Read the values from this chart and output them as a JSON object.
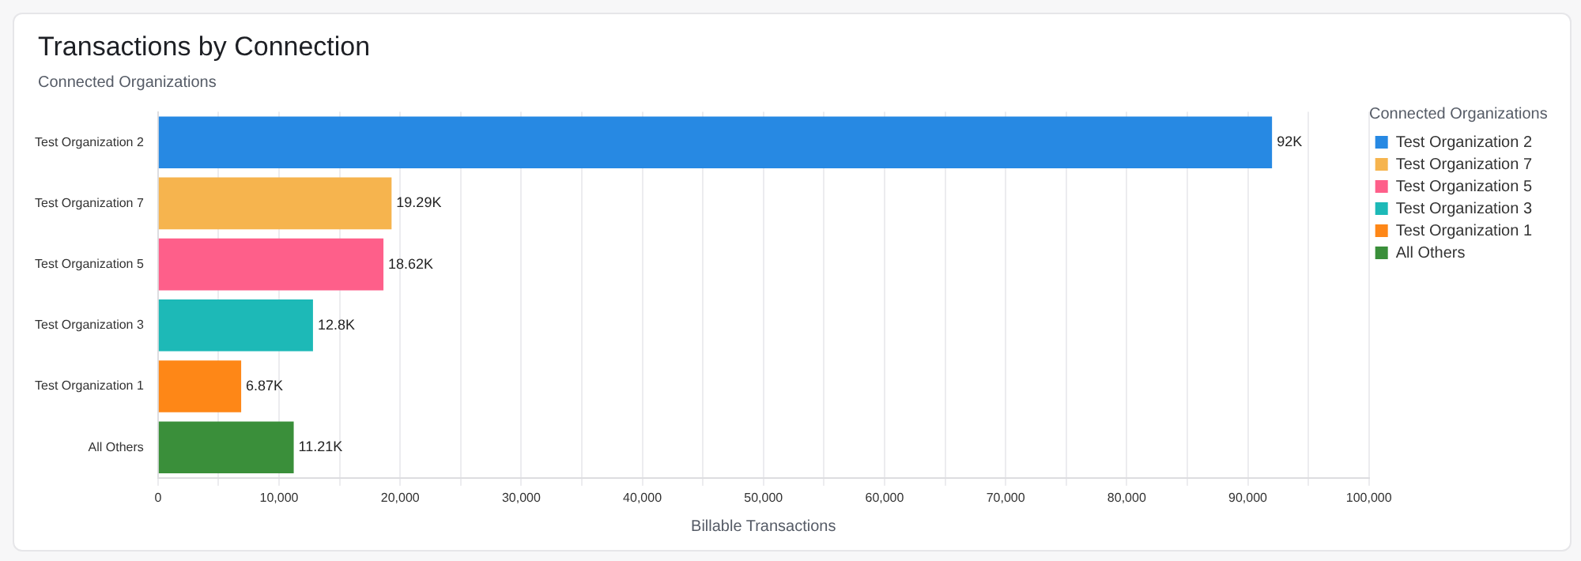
{
  "chart_data": {
    "type": "bar",
    "orientation": "horizontal",
    "title": "Transactions by Connection",
    "subtitle": "Connected Organizations",
    "xlabel": "Billable Transactions",
    "legend_title": "Connected Organizations",
    "legend": "right",
    "grid": "x",
    "categories": [
      "Test Organization 2",
      "Test Organization 7",
      "Test Organization 5",
      "Test Organization 3",
      "Test Organization 1",
      "All Others"
    ],
    "series": [
      {
        "name": "Test Organization 2",
        "color": "#2789e3",
        "values": [
          92000,
          null,
          null,
          null,
          null,
          null
        ],
        "value_labels": [
          "92K",
          null,
          null,
          null,
          null,
          null
        ]
      },
      {
        "name": "Test Organization 7",
        "color": "#f6b44e",
        "values": [
          null,
          19290,
          null,
          null,
          null,
          null
        ],
        "value_labels": [
          null,
          "19.29K",
          null,
          null,
          null,
          null
        ]
      },
      {
        "name": "Test Organization 5",
        "color": "#fe5f8a",
        "values": [
          null,
          null,
          18620,
          null,
          null,
          null
        ],
        "value_labels": [
          null,
          null,
          "18.62K",
          null,
          null,
          null
        ]
      },
      {
        "name": "Test Organization 3",
        "color": "#1db9b7",
        "values": [
          null,
          null,
          null,
          12800,
          null,
          null
        ],
        "value_labels": [
          null,
          null,
          null,
          "12.8K",
          null,
          null
        ]
      },
      {
        "name": "Test Organization 1",
        "color": "#fe8717",
        "values": [
          null,
          null,
          null,
          null,
          6870,
          null
        ],
        "value_labels": [
          null,
          null,
          null,
          null,
          "6.87K",
          null
        ]
      },
      {
        "name": "All Others",
        "color": "#3a8f3a",
        "values": [
          null,
          null,
          null,
          null,
          null,
          11210
        ],
        "value_labels": [
          null,
          null,
          null,
          null,
          null,
          "11.21K"
        ]
      }
    ],
    "xlim": [
      0,
      100000
    ],
    "xticks": [
      0,
      {
        "value": 5000,
        "label": null
      },
      {
        "value": 10000,
        "label": "10,000"
      },
      {
        "value": 15000,
        "label": null
      },
      {
        "value": 20000,
        "label": "20,000"
      },
      {
        "value": 25000,
        "label": null
      },
      {
        "value": 30000,
        "label": "30,000"
      },
      {
        "value": 35000,
        "label": null
      },
      {
        "value": 40000,
        "label": "40,000"
      },
      {
        "value": 45000,
        "label": null
      },
      {
        "value": 50000,
        "label": "50,000"
      },
      {
        "value": 55000,
        "label": null
      },
      {
        "value": 60000,
        "label": "60,000"
      },
      {
        "value": 65000,
        "label": null
      },
      {
        "value": 70000,
        "label": "70,000"
      },
      {
        "value": 75000,
        "label": null
      },
      {
        "value": 80000,
        "label": "80,000"
      },
      {
        "value": 85000,
        "label": null
      },
      {
        "value": 90000,
        "label": "90,000"
      },
      {
        "value": 95000,
        "label": null
      },
      {
        "value": 100000,
        "label": "100,000"
      }
    ]
  }
}
